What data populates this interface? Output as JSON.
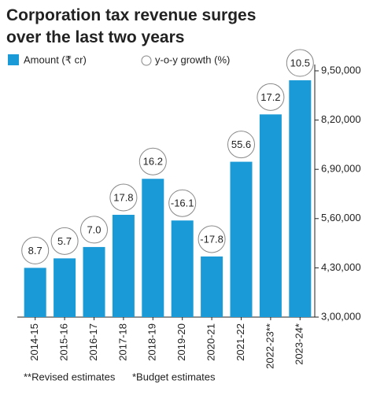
{
  "chart_data": {
    "type": "bar",
    "title": "Corporation tax revenue surges over the last two years",
    "categories": [
      "2014-15",
      "2015-16",
      "2016-17",
      "2017-18",
      "2018-19",
      "2019-20",
      "2020-21",
      "2021-22",
      "2022-23**",
      "2023-24*"
    ],
    "series": [
      {
        "name": "Amount (₹ cr)",
        "color": "#1a9bd7",
        "values": [
          430000,
          455000,
          485000,
          570000,
          665000,
          555000,
          460000,
          710000,
          835000,
          925000
        ]
      }
    ],
    "growth": {
      "name": "y-o-y growth (%)",
      "values": [
        8.7,
        5.7,
        7,
        17.8,
        16.2,
        -16.1,
        -17.8,
        55.6,
        17.2,
        10.5
      ],
      "value_labels": [
        "8.7",
        "5.7",
        "7.0",
        "17.8",
        "16.2",
        "-16.1",
        "-17.8",
        "55.6",
        "17.2",
        "10.5"
      ]
    },
    "ylim": [
      300000,
      950000
    ],
    "yticks": [
      {
        "value": 300000,
        "label": "3,00,000"
      },
      {
        "value": 430000,
        "label": "4,30,000"
      },
      {
        "value": 560000,
        "label": "5,60,000"
      },
      {
        "value": 690000,
        "label": "6,90,000"
      },
      {
        "value": 820000,
        "label": "8,20,000"
      },
      {
        "value": 950000,
        "label": "9,50,000"
      }
    ],
    "footnotes": [
      "**Revised estimates",
      "*Budget estimates"
    ]
  }
}
